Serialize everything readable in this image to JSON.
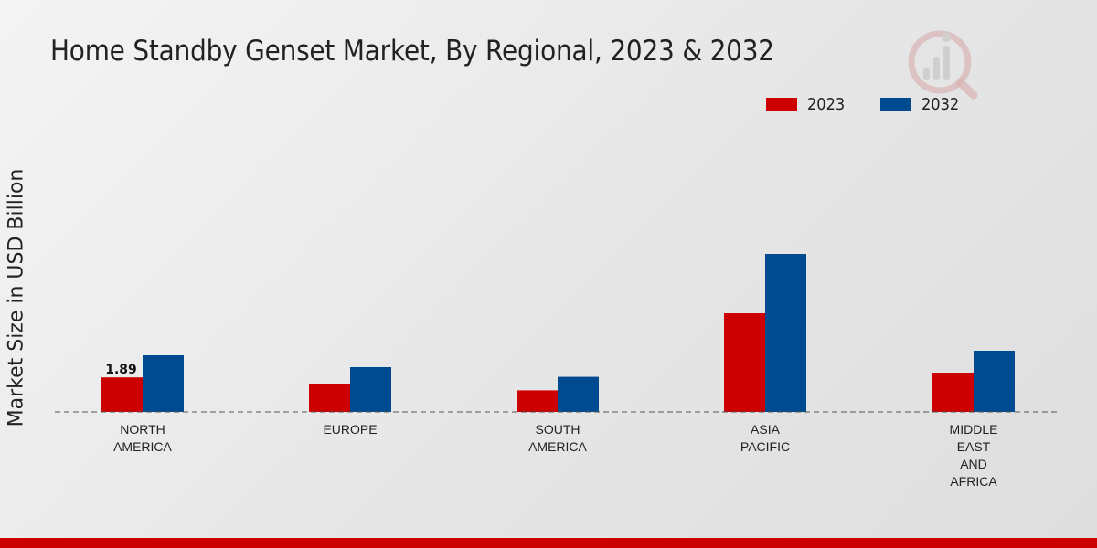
{
  "chart_data": {
    "type": "bar",
    "title": "Home Standby Genset Market, By Regional, 2023 & 2032",
    "xlabel": "",
    "ylabel": "Market Size in USD Billion",
    "categories": [
      "NORTH\nAMERICA",
      "EUROPE",
      "SOUTH\nAMERICA",
      "ASIA\nPACIFIC",
      "MIDDLE\nEAST\nAND\nAFRICA"
    ],
    "series": [
      {
        "name": "2023",
        "color": "#cc0000",
        "values": [
          1.89,
          1.55,
          1.18,
          5.4,
          2.15
        ]
      },
      {
        "name": "2032",
        "color": "#004a8f",
        "values": [
          3.1,
          2.45,
          1.92,
          8.65,
          3.35
        ]
      }
    ],
    "data_labels": [
      {
        "series": 0,
        "index": 0,
        "text": "1.89"
      }
    ],
    "ylim": [
      0,
      10
    ],
    "grid": false,
    "legend": "top-right"
  },
  "colors": {
    "accent": "#cc0000",
    "secondary": "#004a8f"
  },
  "logo": {
    "icon": "bar-chart-magnifier-icon"
  }
}
